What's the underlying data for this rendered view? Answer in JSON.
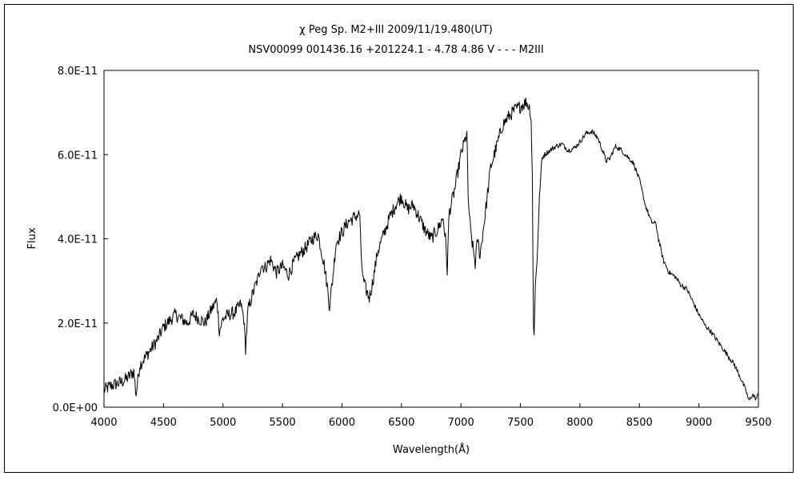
{
  "chart_data": {
    "type": "line",
    "title": "χ Peg    Sp. M2+III   2009/11/19.480(UT)",
    "subtitle": "NSV00099 001436.16 +201224.1 - 4.78 4.86 V - - - M2III",
    "xlabel": "Wavelength(Å)",
    "ylabel": "Flux",
    "xlim": [
      4000,
      9500
    ],
    "ylim": [
      0,
      8e-11
    ],
    "x_ticks": [
      4000,
      4500,
      5000,
      5500,
      6000,
      6500,
      7000,
      7500,
      8000,
      8500,
      9000,
      9500
    ],
    "x_tick_labels": [
      "4000",
      "4500",
      "5000",
      "5500",
      "6000",
      "6500",
      "7000",
      "7500",
      "8000",
      "8500",
      "9000",
      "9500"
    ],
    "y_ticks": [
      0,
      2e-11,
      4e-11,
      6e-11,
      8e-11
    ],
    "y_tick_labels": [
      "0.0E+00",
      "2.0E-11",
      "4.0E-11",
      "6.0E-11",
      "8.0E-11"
    ],
    "grid": false,
    "legend": "none",
    "line_color": "#000000",
    "series": [
      {
        "x": [
          4000,
          4050,
          4100,
          4150,
          4200,
          4250,
          4270,
          4300,
          4350,
          4400,
          4450,
          4500,
          4550,
          4600,
          4650,
          4700,
          4750,
          4800,
          4850,
          4900,
          4950,
          4970,
          5000,
          5050,
          5100,
          5150,
          5175,
          5190,
          5210,
          5250,
          5300,
          5320,
          5350,
          5400,
          5450,
          5500,
          5550,
          5600,
          5650,
          5700,
          5750,
          5800,
          5850,
          5880,
          5895,
          5920,
          5950,
          6000,
          6050,
          6100,
          6150,
          6160,
          6180,
          6200,
          6230,
          6260,
          6300,
          6350,
          6400,
          6450,
          6500,
          6550,
          6600,
          6650,
          6700,
          6750,
          6800,
          6850,
          6870,
          6885,
          6900,
          6950,
          7000,
          7020,
          7050,
          7060,
          7080,
          7100,
          7120,
          7140,
          7160,
          7200,
          7250,
          7300,
          7350,
          7400,
          7450,
          7500,
          7550,
          7580,
          7590,
          7600,
          7605,
          7610,
          7615,
          7625,
          7640,
          7660,
          7680,
          7700,
          7750,
          7800,
          7850,
          7900,
          7950,
          8000,
          8050,
          8100,
          8150,
          8190,
          8220,
          8250,
          8300,
          8350,
          8400,
          8450,
          8500,
          8550,
          8600,
          8640,
          8660,
          8700,
          8750,
          8800,
          8850,
          8900,
          8950,
          9000,
          9050,
          9100,
          9150,
          9200,
          9250,
          9300,
          9350,
          9400,
          9420,
          9450,
          9480,
          9500
        ],
        "y": [
          4e-12,
          5e-12,
          5.5e-12,
          6e-12,
          7e-12,
          8.5e-12,
          3e-12,
          1e-11,
          1.2e-11,
          1.4e-11,
          1.6e-11,
          1.9e-11,
          2.05e-11,
          2.2e-11,
          2.1e-11,
          2e-11,
          2.2e-11,
          2.1e-11,
          2e-11,
          2.3e-11,
          2.55e-11,
          1.8e-11,
          2.1e-11,
          2.2e-11,
          2.25e-11,
          2.45e-11,
          2.1e-11,
          1.4e-11,
          2.3e-11,
          2.7e-11,
          3.1e-11,
          3.4e-11,
          3.3e-11,
          3.5e-11,
          3.2e-11,
          3.35e-11,
          3.15e-11,
          3.45e-11,
          3.65e-11,
          3.8e-11,
          4e-11,
          4.1e-11,
          3.4e-11,
          2.8e-11,
          2.4e-11,
          3e-11,
          3.9e-11,
          4.15e-11,
          4.4e-11,
          4.5e-11,
          4.6e-11,
          3.6e-11,
          3e-11,
          2.8e-11,
          2.6e-11,
          3e-11,
          3.7e-11,
          4.1e-11,
          4.5e-11,
          4.8e-11,
          5e-11,
          4.7e-11,
          4.8e-11,
          4.5e-11,
          4.2e-11,
          4e-11,
          4.2e-11,
          4.5e-11,
          4e-11,
          3.25e-11,
          4.6e-11,
          5.2e-11,
          6e-11,
          6.2e-11,
          6.5e-11,
          5e-11,
          4.2e-11,
          3.8e-11,
          3.4e-11,
          4e-11,
          3.6e-11,
          4.5e-11,
          5.7e-11,
          6.2e-11,
          6.7e-11,
          6.9e-11,
          7.05e-11,
          7.15e-11,
          7.25e-11,
          7.1e-11,
          6.8e-11,
          5.5e-11,
          3.5e-11,
          1.9e-11,
          1.75e-11,
          2.9e-11,
          3.5e-11,
          5e-11,
          5.9e-11,
          6e-11,
          6.1e-11,
          6.2e-11,
          6.25e-11,
          6.1e-11,
          6.15e-11,
          6.3e-11,
          6.5e-11,
          6.55e-11,
          6.4e-11,
          6.1e-11,
          5.85e-11,
          5.9e-11,
          6.2e-11,
          6.1e-11,
          5.95e-11,
          5.8e-11,
          5.4e-11,
          4.8e-11,
          4.4e-11,
          4.35e-11,
          4e-11,
          3.5e-11,
          3.2e-11,
          3.1e-11,
          2.9e-11,
          2.8e-11,
          2.5e-11,
          2.2e-11,
          1.95e-11,
          1.8e-11,
          1.6e-11,
          1.4e-11,
          1.2e-11,
          1e-11,
          7e-12,
          3.5e-12,
          1.5e-12,
          3e-12,
          2e-12,
          3e-12
        ]
      }
    ]
  }
}
